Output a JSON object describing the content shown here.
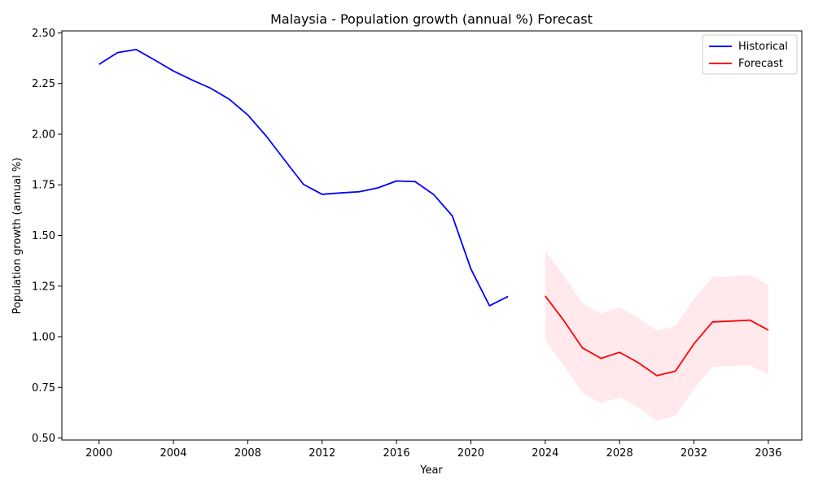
{
  "chart_data": {
    "type": "line",
    "title": "Malaysia - Population growth (annual %) Forecast",
    "xlabel": "Year",
    "ylabel": "Population growth (annual %)",
    "xlim": [
      1998,
      2037.8
    ],
    "ylim": [
      0.49,
      2.51
    ],
    "xticks": [
      2000,
      2004,
      2008,
      2012,
      2016,
      2020,
      2024,
      2028,
      2032,
      2036
    ],
    "yticks": [
      "0.50",
      "0.75",
      "1.00",
      "1.25",
      "1.50",
      "1.75",
      "2.00",
      "2.25",
      "2.50"
    ],
    "legend_position": "top-right",
    "grid": false,
    "series": [
      {
        "name": "Historical",
        "color": "#0000ff",
        "x": [
          2000,
          2001,
          2002,
          2003,
          2004,
          2005,
          2006,
          2007,
          2008,
          2009,
          2010,
          2011,
          2012,
          2013,
          2014,
          2015,
          2016,
          2017,
          2018,
          2019,
          2020,
          2021,
          2022
        ],
        "y": [
          2.345,
          2.403,
          2.418,
          2.366,
          2.312,
          2.268,
          2.227,
          2.173,
          2.095,
          1.99,
          1.87,
          1.752,
          1.703,
          1.71,
          1.716,
          1.735,
          1.769,
          1.766,
          1.702,
          1.597,
          1.335,
          1.153,
          1.199
        ]
      },
      {
        "name": "Forecast",
        "color": "#ff0000",
        "x": [
          2024,
          2025,
          2026,
          2027,
          2028,
          2029,
          2030,
          2031,
          2032,
          2033,
          2034,
          2035,
          2036
        ],
        "y": [
          1.201,
          1.08,
          0.945,
          0.893,
          0.923,
          0.872,
          0.808,
          0.83,
          0.965,
          1.073,
          1.077,
          1.082,
          1.033
        ],
        "lower": [
          0.98,
          0.858,
          0.723,
          0.671,
          0.701,
          0.65,
          0.586,
          0.608,
          0.743,
          0.851,
          0.855,
          0.86,
          0.811
        ],
        "upper": [
          1.423,
          1.302,
          1.167,
          1.115,
          1.145,
          1.094,
          1.03,
          1.052,
          1.187,
          1.295,
          1.299,
          1.304,
          1.255
        ],
        "band_color": "#ffc0cb"
      }
    ]
  }
}
